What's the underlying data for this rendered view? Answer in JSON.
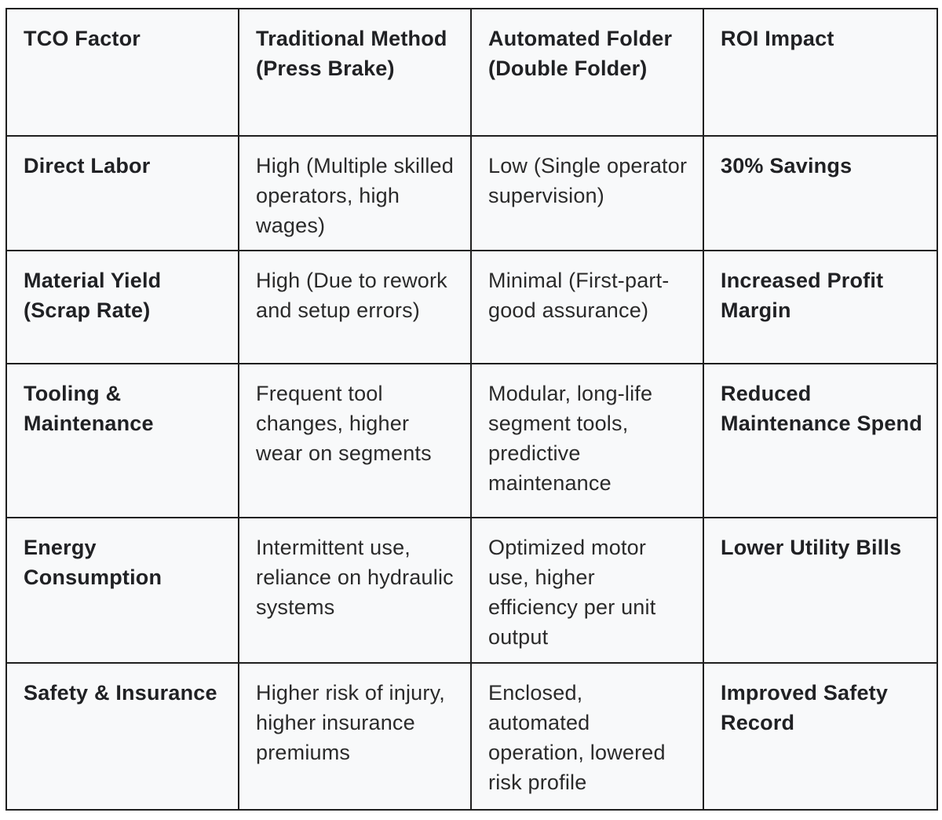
{
  "table": {
    "headers": [
      "TCO Factor",
      "Traditional Method (Press Brake)",
      "Automated Folder (Double Folder)",
      "ROI Impact"
    ],
    "rows": [
      {
        "factor": "Direct Labor",
        "traditional": "High (Multiple skilled operators, high wages)",
        "automated": "Low (Single operator supervision)",
        "roi": "30% Savings"
      },
      {
        "factor": "Material Yield (Scrap Rate)",
        "traditional": "High (Due to rework and setup errors)",
        "automated": "Minimal (First-part-good assurance)",
        "roi": "Increased Profit Margin"
      },
      {
        "factor": "Tooling & Maintenance",
        "traditional": "Frequent tool changes, higher wear on segments",
        "automated": "Modular, long-life segment tools, predictive maintenance",
        "roi": "Reduced Maintenance Spend"
      },
      {
        "factor": "Energy Consumption",
        "traditional": "Intermittent use, reliance on hydraulic systems",
        "automated": "Optimized motor use, higher efficiency per unit output",
        "roi": "Lower Utility Bills"
      },
      {
        "factor": "Safety & Insurance",
        "traditional": "Higher risk of injury, higher insurance premiums",
        "automated": "Enclosed, automated operation, lowered risk profile",
        "roi": "Improved Safety Record"
      }
    ]
  }
}
